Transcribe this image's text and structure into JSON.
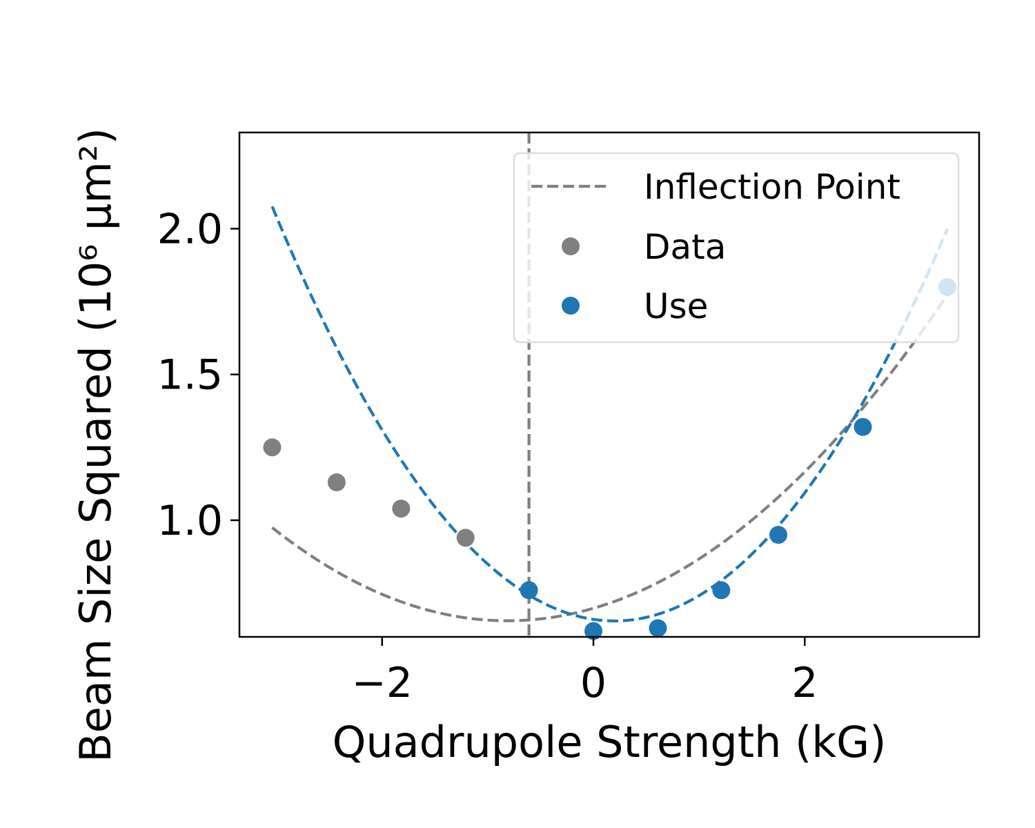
{
  "chart_data": {
    "type": "scatter",
    "xlabel": "Quadrupole Strength (kG)",
    "ylabel": "Beam Size Squared (10⁶ μm²)",
    "xlim": [
      -3.35,
      3.65
    ],
    "ylim": [
      0.6,
      2.33
    ],
    "xticks": [
      -2,
      0,
      2
    ],
    "xtick_labels": [
      "−2",
      "0",
      "2"
    ],
    "yticks": [
      1.0,
      1.5,
      2.0
    ],
    "ytick_labels": [
      "1.0",
      "1.5",
      "2.0"
    ],
    "grid": false,
    "legend_position": "top-right",
    "inflection_point": {
      "name": "Inflection Point",
      "x": -0.61,
      "color": "#7f7f7f"
    },
    "series": [
      {
        "name": "Data",
        "kind": "scatter",
        "color": "#808080",
        "points": [
          {
            "x": -3.04,
            "y": 1.25
          },
          {
            "x": -2.43,
            "y": 1.13
          },
          {
            "x": -1.82,
            "y": 1.04
          },
          {
            "x": -1.21,
            "y": 0.94
          }
        ]
      },
      {
        "name": "Use",
        "kind": "scatter",
        "color": "#1f77b4",
        "points": [
          {
            "x": -0.61,
            "y": 0.76
          },
          {
            "x": 0.0,
            "y": 0.62
          },
          {
            "x": 0.61,
            "y": 0.63
          },
          {
            "x": 1.21,
            "y": 0.76
          },
          {
            "x": 1.75,
            "y": 0.95
          },
          {
            "x": 2.55,
            "y": 1.32
          },
          {
            "x": 3.35,
            "y": 1.8
          }
        ]
      }
    ],
    "fits": [
      {
        "kind": "dashed-line",
        "color": "#808080",
        "a": 0.0645,
        "b": 0.105,
        "c": 0.698,
        "x_range": [
          -3.04,
          3.35
        ]
      },
      {
        "kind": "dashed-line",
        "color": "#1f77b4",
        "a": 0.1355,
        "b": -0.054,
        "c": 0.66,
        "x_range": [
          -3.04,
          3.35
        ]
      }
    ],
    "legend": [
      {
        "label": "Inflection Point",
        "marker": "dashed-line",
        "color": "#7f7f7f"
      },
      {
        "label": "Data",
        "marker": "dot",
        "color": "#808080"
      },
      {
        "label": "Use",
        "marker": "dot",
        "color": "#1f77b4"
      }
    ]
  }
}
